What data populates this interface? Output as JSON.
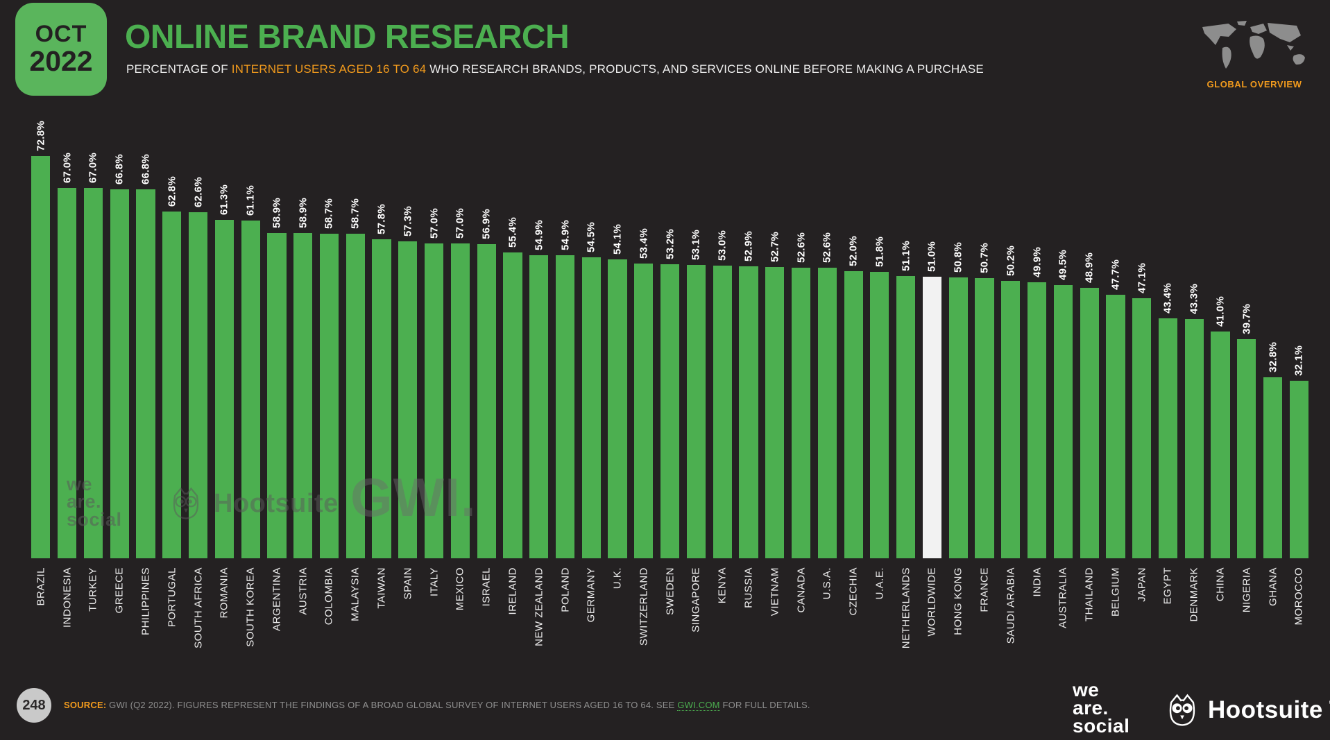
{
  "header": {
    "date_line1": "OCT",
    "date_line2": "2022",
    "title": "ONLINE BRAND RESEARCH",
    "subtitle_prefix": "PERCENTAGE OF ",
    "subtitle_highlight": "INTERNET USERS AGED 16 TO 64",
    "subtitle_suffix": " WHO RESEARCH BRANDS, PRODUCTS, AND SERVICES ONLINE BEFORE MAKING A PURCHASE",
    "overview_label": "GLOBAL OVERVIEW"
  },
  "chart_data": {
    "type": "bar",
    "title": "ONLINE BRAND RESEARCH",
    "subtitle": "PERCENTAGE OF INTERNET USERS AGED 16 TO 64 WHO RESEARCH BRANDS, PRODUCTS, AND SERVICES ONLINE BEFORE MAKING A PURCHASE",
    "unit": "%",
    "ylim": [
      0,
      75
    ],
    "grid": false,
    "orientation": "vertical",
    "highlight_category": "WORLDWIDE",
    "categories": [
      "BRAZIL",
      "INDONESIA",
      "TURKEY",
      "GREECE",
      "PHILIPPINES",
      "PORTUGAL",
      "SOUTH AFRICA",
      "ROMANIA",
      "SOUTH KOREA",
      "ARGENTINA",
      "AUSTRIA",
      "COLOMBIA",
      "MALAYSIA",
      "TAIWAN",
      "SPAIN",
      "ITALY",
      "MEXICO",
      "ISRAEL",
      "IRELAND",
      "NEW ZEALAND",
      "POLAND",
      "GERMANY",
      "U.K.",
      "SWITZERLAND",
      "SWEDEN",
      "SINGAPORE",
      "KENYA",
      "RUSSIA",
      "VIETNAM",
      "CANADA",
      "U.S.A.",
      "CZECHIA",
      "U.A.E.",
      "NETHERLANDS",
      "WORLDWIDE",
      "HONG KONG",
      "FRANCE",
      "SAUDI ARABIA",
      "INDIA",
      "AUSTRALIA",
      "THAILAND",
      "BELGIUM",
      "JAPAN",
      "EGYPT",
      "DENMARK",
      "CHINA",
      "NIGERIA",
      "GHANA",
      "MOROCCO"
    ],
    "values": [
      72.8,
      67.0,
      67.0,
      66.8,
      66.8,
      62.8,
      62.6,
      61.3,
      61.1,
      58.9,
      58.9,
      58.7,
      58.7,
      57.8,
      57.3,
      57.0,
      57.0,
      56.9,
      55.4,
      54.9,
      54.9,
      54.5,
      54.1,
      53.4,
      53.2,
      53.1,
      53.0,
      52.9,
      52.7,
      52.6,
      52.6,
      52.0,
      51.8,
      51.1,
      51.0,
      50.8,
      50.7,
      50.2,
      49.9,
      49.5,
      48.9,
      47.7,
      47.1,
      43.4,
      43.3,
      41.0,
      39.7,
      32.8,
      32.1
    ]
  },
  "watermarks": {
    "we_are_social": [
      "we",
      "are.",
      "social"
    ],
    "hootsuite": "Hootsuite",
    "gwi": "GWI."
  },
  "footer": {
    "page_number": "248",
    "source_label": "SOURCE:",
    "source_text_1": " GWI (Q2 2022). FIGURES REPRESENT THE FINDINGS OF A BROAD GLOBAL SURVEY OF INTERNET USERS AGED 16 TO 64. SEE ",
    "source_link": "GWI.COM",
    "source_text_2": " FOR FULL DETAILS.",
    "brand_we_are_social": [
      "we",
      "are.",
      "social"
    ],
    "brand_hootsuite": "Hootsuite",
    "registered_mark": "®"
  },
  "colors": {
    "background": "#242122",
    "accent_green": "#4caf50",
    "box_green": "#5ab55c",
    "accent_orange": "#f29b1d",
    "bar_green": "#4caf50",
    "bar_highlight": "#f2f2f2"
  }
}
